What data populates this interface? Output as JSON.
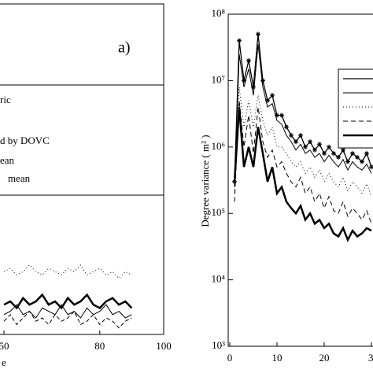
{
  "chart_data": [
    {
      "type": "line",
      "label": "a)",
      "xlabel": "e",
      "xlim": [
        50,
        100
      ],
      "xticks": [
        50,
        80,
        100
      ],
      "ylim": [
        0,
        100
      ],
      "x": [
        50,
        52,
        54,
        56,
        58,
        60,
        62,
        64,
        66,
        68,
        70,
        72,
        74,
        76,
        78,
        80,
        82,
        84,
        86,
        88,
        90
      ],
      "series": [
        {
          "name": "ric",
          "color": "#000",
          "dash": "1,3",
          "width": 1,
          "values": [
            19,
            20,
            18,
            19,
            21,
            19,
            18,
            20,
            19,
            18,
            20,
            19,
            21,
            18,
            19,
            20,
            18,
            19,
            17,
            19,
            18
          ]
        },
        {
          "name": "d by DOVC",
          "color": "#000",
          "dash": "",
          "width": 2.5,
          "values": [
            9,
            10,
            8,
            11,
            9,
            10,
            12,
            9,
            10,
            8,
            11,
            9,
            10,
            12,
            9,
            8,
            10,
            11,
            9,
            10,
            8
          ]
        },
        {
          "name": "ean",
          "color": "#000",
          "dash": "",
          "width": 1,
          "values": [
            6,
            7,
            9,
            6,
            7,
            5,
            8,
            7,
            6,
            9,
            6,
            7,
            5,
            8,
            6,
            7,
            9,
            6,
            7,
            5,
            6
          ]
        },
        {
          "name": "mean",
          "color": "#000",
          "dash": "5,3",
          "width": 1,
          "values": [
            4,
            6,
            3,
            5,
            7,
            4,
            5,
            3,
            6,
            4,
            5,
            7,
            3,
            4,
            6,
            3,
            5,
            4,
            2,
            4,
            5
          ]
        }
      ]
    },
    {
      "type": "line",
      "ylabel": "Degree variance ( m² )",
      "log_y": true,
      "xlim": [
        0,
        30
      ],
      "xticks": [
        0,
        10,
        20,
        30
      ],
      "ylim": [
        1000,
        100000000
      ],
      "yticks": [
        {
          "value": 1000,
          "label": "10³"
        },
        {
          "value": 10000,
          "label": "10⁴"
        },
        {
          "value": 100000,
          "label": "10⁵"
        },
        {
          "value": 1000000,
          "label": "10⁶"
        },
        {
          "value": 10000000,
          "label": "10⁷"
        },
        {
          "value": 100000000,
          "label": "10⁸"
        }
      ],
      "x": [
        1,
        2,
        3,
        4,
        5,
        6,
        7,
        8,
        9,
        10,
        11,
        12,
        13,
        14,
        15,
        16,
        17,
        18,
        19,
        20,
        21,
        22,
        23,
        24,
        25,
        26,
        27,
        28,
        29,
        30
      ],
      "series": [
        {
          "color": "#000",
          "dash": "",
          "width": 1.3,
          "marker": "star",
          "values": [
            300000,
            40000000,
            10000000,
            20000000,
            8000000,
            50000000,
            10000000,
            5000000,
            6000000,
            3000000,
            3000000,
            2000000,
            1500000,
            1200000,
            1500000,
            1000000,
            1200000,
            900000,
            1100000,
            800000,
            1000000,
            800000,
            700000,
            900000,
            600000,
            800000,
            700000,
            600000,
            800000,
            500000
          ]
        },
        {
          "color": "#000",
          "dash": "",
          "width": 1,
          "values": [
            250000,
            25000000,
            8000000,
            15000000,
            6000000,
            35000000,
            8000000,
            4000000,
            4500000,
            2500000,
            2200000,
            1500000,
            1200000,
            900000,
            1100000,
            800000,
            900000,
            700000,
            800000,
            600000,
            750000,
            600000,
            500000,
            650000,
            450000,
            600000,
            500000,
            450000,
            550000,
            400000
          ]
        },
        {
          "color": "#000",
          "dash": "1,3",
          "width": 1,
          "values": [
            200000,
            8000000,
            2000000,
            5000000,
            2000000,
            6000000,
            2500000,
            1500000,
            2000000,
            1000000,
            1000000,
            800000,
            600000,
            500000,
            600000,
            400000,
            500000,
            350000,
            450000,
            300000,
            400000,
            300000,
            250000,
            350000,
            220000,
            300000,
            250000,
            200000,
            280000,
            180000
          ]
        },
        {
          "color": "#000",
          "dash": "6,4",
          "width": 1,
          "values": [
            150000,
            5000000,
            1000000,
            3000000,
            800000,
            4000000,
            1200000,
            700000,
            900000,
            500000,
            600000,
            400000,
            300000,
            250000,
            350000,
            200000,
            250000,
            150000,
            200000,
            120000,
            180000,
            110000,
            100000,
            150000,
            90000,
            120000,
            100000,
            80000,
            110000,
            70000
          ]
        },
        {
          "color": "#000",
          "dash": "",
          "width": 2.5,
          "values": [
            300000,
            4000000,
            500000,
            1000000,
            500000,
            2000000,
            800000,
            300000,
            500000,
            200000,
            250000,
            150000,
            120000,
            100000,
            130000,
            80000,
            100000,
            70000,
            80000,
            60000,
            70000,
            50000,
            45000,
            60000,
            40000,
            55000,
            45000,
            50000,
            60000,
            55000
          ]
        }
      ]
    }
  ]
}
